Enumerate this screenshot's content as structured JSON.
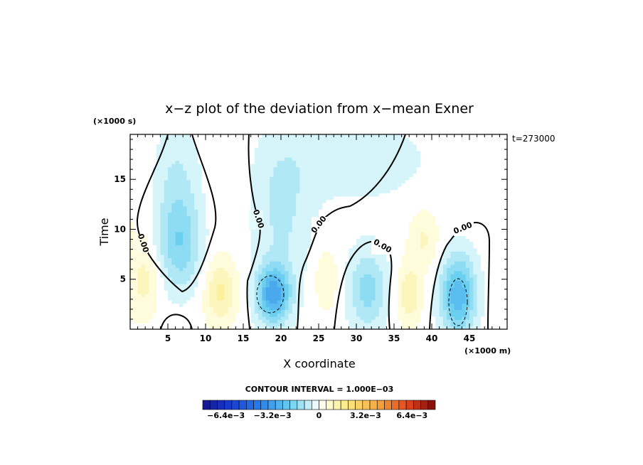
{
  "chart_data": {
    "type": "heatmap",
    "title": "x−z plot of the deviation from x−mean Exner",
    "xlabel": "X coordinate",
    "ylabel": "Time",
    "x_unit_label": "(×1000 m)",
    "y_unit_label": "(×1000 s)",
    "time_stamp": "t=273000",
    "xlim": [
      0,
      50
    ],
    "ylim": [
      0,
      19.5
    ],
    "x_ticks": [
      5,
      10,
      15,
      20,
      25,
      30,
      35,
      40,
      45
    ],
    "y_ticks": [
      5,
      10,
      15
    ],
    "x_tick_labels": [
      "5",
      "10",
      "15",
      "20",
      "25",
      "30",
      "35",
      "40",
      "45"
    ],
    "y_tick_labels": [
      "5",
      "10",
      "15"
    ],
    "contour_interval_label": "CONTOUR INTERVAL = 1.000E−03",
    "contour_interval": 0.001,
    "contour_labels": [
      "0.00",
      "0.00",
      "0.00",
      "0.00",
      "0.00"
    ],
    "colorbar_ticks": [
      "−6.4e−3",
      "−3.2e−3",
      "0",
      "3.2e−3",
      "6.4e−3"
    ],
    "colorbar_tick_values": [
      -0.0064,
      -0.0032,
      0,
      0.0032,
      0.0064
    ],
    "colorbar_range": [
      -0.008,
      0.008
    ],
    "fields": [
      {
        "x": 0,
        "y": 15,
        "amp": 0.0003,
        "sx": 14,
        "sy": 20
      },
      {
        "x": 6.5,
        "y": 8.5,
        "amp": -0.0018,
        "sx": 3,
        "sy": 5
      },
      {
        "x": 6,
        "y": 16,
        "amp": -0.0009,
        "sx": 3.5,
        "sy": 6
      },
      {
        "x": 19,
        "y": 3.5,
        "amp": -0.003,
        "sx": 2.2,
        "sy": 2.8
      },
      {
        "x": 20,
        "y": 12,
        "amp": -0.0009,
        "sx": 4,
        "sy": 8
      },
      {
        "x": 30,
        "y": 17,
        "amp": -0.0006,
        "sx": 9,
        "sy": 4
      },
      {
        "x": 31.5,
        "y": 4,
        "amp": -0.0015,
        "sx": 2.5,
        "sy": 4
      },
      {
        "x": 43.5,
        "y": 3.5,
        "amp": -0.0026,
        "sx": 2.3,
        "sy": 4
      },
      {
        "x": 12,
        "y": 3.8,
        "amp": 0.0013,
        "sx": 2,
        "sy": 3
      },
      {
        "x": 2,
        "y": 5,
        "amp": 0.0008,
        "sx": 2,
        "sy": 3
      },
      {
        "x": 37,
        "y": 3.5,
        "amp": 0.0012,
        "sx": 1.6,
        "sy": 3
      },
      {
        "x": 39,
        "y": 9,
        "amp": 0.0008,
        "sx": 2,
        "sy": 3
      },
      {
        "x": 26,
        "y": 5,
        "amp": 0.0008,
        "sx": 1.5,
        "sy": 3
      }
    ],
    "colors": {
      "frame": "#000000",
      "zero_contour": "#000000"
    }
  }
}
